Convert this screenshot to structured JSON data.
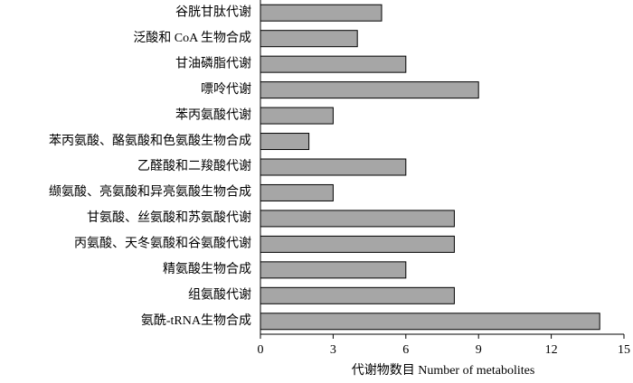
{
  "chart_data": {
    "type": "bar",
    "orientation": "horizontal",
    "x_label": "代谢物数目  Number of metabolites",
    "categories": [
      "谷胱甘肽代谢",
      "泛酸和 CoA 生物合成",
      "甘油磷脂代谢",
      "嘌呤代谢",
      "苯丙氨酸代谢",
      "苯丙氨酸、酪氨酸和色氨酸生物合成",
      "乙醛酸和二羧酸代谢",
      "缬氨酸、亮氨酸和异亮氨酸生物合成",
      "甘氨酸、丝氨酸和苏氨酸代谢",
      "丙氨酸、天冬氨酸和谷氨酸代谢",
      "精氨酸生物合成",
      "组氨酸代谢",
      "氨酰-tRNA生物合成"
    ],
    "values": [
      5,
      4,
      6,
      9,
      3,
      2,
      6,
      3,
      8,
      8,
      6,
      8,
      14
    ],
    "color": "#a6a6a6",
    "xlim": [
      0,
      15
    ],
    "xticks": [
      0,
      3,
      6,
      9,
      12,
      15
    ],
    "grid": false
  }
}
